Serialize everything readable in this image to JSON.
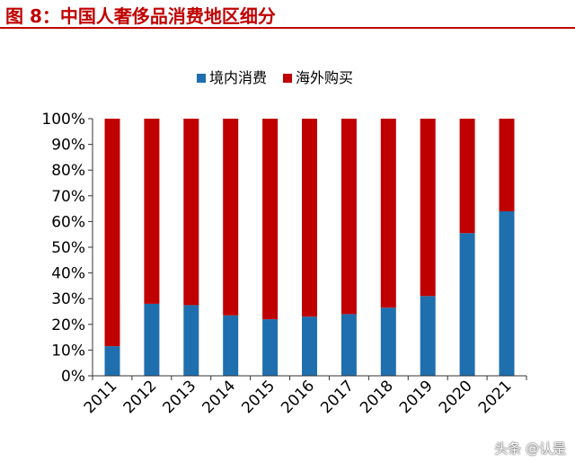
{
  "figure_title": "图 8：中国人奢侈品消费地区细分",
  "watermark": "头条 @认是",
  "chart_data": {
    "type": "bar",
    "stacked": true,
    "categories": [
      "2011",
      "2012",
      "2013",
      "2014",
      "2015",
      "2016",
      "2017",
      "2018",
      "2019",
      "2020",
      "2021"
    ],
    "series": [
      {
        "name": "境内消费",
        "color": "#1f6fae",
        "values": [
          11.5,
          28,
          27.5,
          23.5,
          22,
          23,
          24,
          26.5,
          31,
          55.5,
          64
        ]
      },
      {
        "name": "海外购买",
        "color": "#c00000",
        "values": [
          88.5,
          72,
          72.5,
          76.5,
          78,
          77,
          76,
          73.5,
          69,
          44.5,
          36
        ]
      }
    ],
    "ylim": [
      0,
      100
    ],
    "yticks": [
      "0%",
      "10%",
      "20%",
      "30%",
      "40%",
      "50%",
      "60%",
      "70%",
      "80%",
      "90%",
      "100%"
    ],
    "xlabel": "",
    "ylabel": "",
    "grid": false,
    "legend_position": "top"
  }
}
